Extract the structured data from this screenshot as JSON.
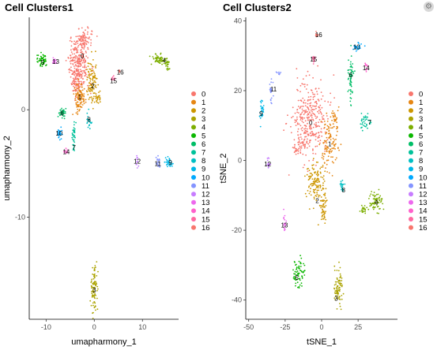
{
  "chart_data": [
    {
      "type": "scatter",
      "title": "Cell Clusters1",
      "xlabel": "umapharmony_1",
      "ylabel": "umapharmony_2",
      "xlim": [
        -13.5,
        17.5
      ],
      "ylim": [
        -19.5,
        8.6
      ],
      "xticks": [
        -10,
        0,
        10
      ],
      "yticks": [
        0,
        -10
      ],
      "grid": false,
      "legend": "right",
      "clusters": [
        {
          "name": "0",
          "color": "#F8766D",
          "label_pos": [
            -2.5,
            5.0
          ],
          "blobs": [
            [
              -3.2,
              4.3,
              2.0,
              2.4,
              260
            ],
            [
              -2.2,
              6.4,
              1.6,
              0.9,
              90
            ],
            [
              -3.6,
              2.5,
              1.0,
              1.2,
              60
            ]
          ]
        },
        {
          "name": "1",
          "color": "#E68613",
          "label_pos": [
            -3.0,
            1.2
          ],
          "blobs": [
            [
              -3.0,
              1.4,
              1.3,
              1.0,
              90
            ],
            [
              -3.5,
              0.2,
              0.8,
              0.6,
              25
            ]
          ]
        },
        {
          "name": "2",
          "color": "#CD9600",
          "label_pos": [
            -0.3,
            2.2
          ],
          "blobs": [
            [
              -0.5,
              2.6,
              1.0,
              2.2,
              100
            ],
            [
              0.8,
              1.0,
              0.7,
              0.6,
              25
            ]
          ]
        },
        {
          "name": "3",
          "color": "#ABA300",
          "label_pos": [
            0.0,
            -16.8
          ],
          "blobs": [
            [
              0.0,
              -16.6,
              0.7,
              2.0,
              90
            ]
          ]
        },
        {
          "name": "4",
          "color": "#7CAE00",
          "label_pos": [
            14.5,
            4.6
          ],
          "blobs": [
            [
              13.6,
              4.7,
              1.5,
              0.5,
              70
            ],
            [
              15.2,
              4.2,
              0.5,
              0.6,
              20
            ]
          ]
        },
        {
          "name": "5",
          "color": "#0CB702",
          "label_pos": [
            -10.7,
            4.4
          ],
          "blobs": [
            [
              -10.8,
              4.6,
              0.9,
              0.6,
              60
            ]
          ]
        },
        {
          "name": "6",
          "color": "#00BE67",
          "label_pos": [
            -6.7,
            -0.3
          ],
          "blobs": [
            [
              -6.6,
              -0.3,
              0.8,
              0.5,
              40
            ]
          ]
        },
        {
          "name": "7",
          "color": "#00C19A",
          "label_pos": [
            -4.2,
            -3.5
          ],
          "blobs": [
            [
              -4.2,
              -2.6,
              0.35,
              1.3,
              35
            ]
          ]
        },
        {
          "name": "8",
          "color": "#00BFC4",
          "label_pos": [
            -1.1,
            -0.9
          ],
          "blobs": [
            [
              -1.1,
              -1.1,
              0.5,
              0.7,
              20
            ]
          ]
        },
        {
          "name": "9",
          "color": "#00B8E7",
          "label_pos": [
            15.8,
            -4.9
          ],
          "blobs": [
            [
              15.4,
              -4.9,
              0.9,
              0.4,
              30
            ]
          ]
        },
        {
          "name": "10",
          "color": "#00A9FF",
          "label_pos": [
            -7.3,
            -2.2
          ],
          "blobs": [
            [
              -7.2,
              -2.2,
              0.5,
              0.6,
              25
            ]
          ]
        },
        {
          "name": "11",
          "color": "#8494FF",
          "label_pos": [
            13.2,
            -5.0
          ],
          "blobs": [
            [
              13.3,
              -4.8,
              0.5,
              0.7,
              20
            ]
          ]
        },
        {
          "name": "12",
          "color": "#C77CFF",
          "label_pos": [
            8.9,
            -4.8
          ],
          "blobs": [
            [
              8.9,
              -4.8,
              0.2,
              0.6,
              12
            ]
          ]
        },
        {
          "name": "13",
          "color": "#ED68ED",
          "label_pos": [
            -8.0,
            4.5
          ],
          "blobs": [
            [
              -8.2,
              4.5,
              0.6,
              0.25,
              18
            ]
          ]
        },
        {
          "name": "14",
          "color": "#FF61CC",
          "label_pos": [
            -5.8,
            -3.9
          ],
          "blobs": [
            [
              -5.8,
              -3.9,
              0.4,
              0.3,
              12
            ]
          ]
        },
        {
          "name": "15",
          "color": "#FF68A1",
          "label_pos": [
            4.0,
            2.7
          ],
          "blobs": [
            [
              3.9,
              2.9,
              0.3,
              0.3,
              10
            ]
          ]
        },
        {
          "name": "16",
          "color": "#F8766D",
          "label_pos": [
            5.4,
            3.5
          ],
          "blobs": [
            [
              5.2,
              3.6,
              0.2,
              0.2,
              6
            ]
          ]
        }
      ]
    },
    {
      "type": "scatter",
      "title": "Cell Clusters2",
      "xlabel": "tSNE_1",
      "ylabel": "tSNE_2",
      "xlim": [
        -52,
        52
      ],
      "ylim": [
        -45.5,
        41
      ],
      "xticks": [
        -50,
        -25,
        0,
        25
      ],
      "yticks": [
        40,
        20,
        0,
        -20,
        -40
      ],
      "grid": false,
      "legend": "right",
      "clusters": [
        {
          "name": "0",
          "color": "#F8766D",
          "label_pos": [
            -7.5,
            10.8
          ],
          "blobs": [
            [
              -8.0,
              12.0,
              11.0,
              11.0,
              320
            ],
            [
              -15.0,
              4.0,
              5.0,
              3.0,
              40
            ]
          ]
        },
        {
          "name": "1",
          "color": "#E68613",
          "label_pos": [
            5.5,
            4.7
          ],
          "blobs": [
            [
              5.5,
              4.5,
              6.0,
              7.0,
              110
            ],
            [
              9.0,
              12.0,
              3.0,
              3.0,
              30
            ]
          ]
        },
        {
          "name": "2",
          "color": "#CD9600",
          "label_pos": [
            -3.0,
            -11.5
          ],
          "blobs": [
            [
              -4.0,
              -6.0,
              6.5,
              6.0,
              130
            ],
            [
              1.0,
              -14.0,
              2.5,
              5.0,
              50
            ]
          ]
        },
        {
          "name": "3",
          "color": "#ABA300",
          "label_pos": [
            10.0,
            -39.5
          ],
          "blobs": [
            [
              11.5,
              -36.5,
              3.0,
              5.5,
              80
            ]
          ]
        },
        {
          "name": "4",
          "color": "#7CAE00",
          "label_pos": [
            37.5,
            -12.0
          ],
          "blobs": [
            [
              37.5,
              -11.5,
              4.5,
              3.0,
              70
            ],
            [
              28.5,
              -14.0,
              2.5,
              1.0,
              20
            ]
          ]
        },
        {
          "name": "5",
          "color": "#0CB702",
          "label_pos": [
            -17.0,
            -33.5
          ],
          "blobs": [
            [
              -15.5,
              -32.0,
              3.5,
              5.0,
              70
            ]
          ]
        },
        {
          "name": "6",
          "color": "#00BE67",
          "label_pos": [
            20.0,
            24.5
          ],
          "blobs": [
            [
              20.0,
              24.0,
              1.8,
              6.0,
              60
            ]
          ]
        },
        {
          "name": "7",
          "color": "#00C19A",
          "label_pos": [
            33.0,
            11.0
          ],
          "blobs": [
            [
              30.0,
              11.0,
              3.5,
              2.0,
              35
            ]
          ]
        },
        {
          "name": "8",
          "color": "#00BFC4",
          "label_pos": [
            15.0,
            -8.5
          ],
          "blobs": [
            [
              14.0,
              -7.5,
              1.5,
              3.0,
              22
            ]
          ]
        },
        {
          "name": "9",
          "color": "#00B8E7",
          "label_pos": [
            -41.5,
            13.5
          ],
          "blobs": [
            [
              -41.0,
              14.0,
              1.3,
              3.5,
              30
            ]
          ]
        },
        {
          "name": "10",
          "color": "#00A9FF",
          "label_pos": [
            24.0,
            32.5
          ],
          "blobs": [
            [
              24.5,
              32.5,
              3.0,
              1.5,
              30
            ]
          ]
        },
        {
          "name": "11",
          "color": "#8494FF",
          "label_pos": [
            -33.0,
            20.5
          ],
          "blobs": [
            [
              -34.5,
              20.0,
              1.5,
              3.0,
              22
            ],
            [
              -29.0,
              25.0,
              2.0,
              0.6,
              8
            ]
          ]
        },
        {
          "name": "12",
          "color": "#C77CFF",
          "label_pos": [
            -37.0,
            -1.0
          ],
          "blobs": [
            [
              -36.5,
              -0.5,
              1.0,
              1.5,
              15
            ]
          ]
        },
        {
          "name": "13",
          "color": "#ED68ED",
          "label_pos": [
            -25.5,
            -18.5
          ],
          "blobs": [
            [
              -25.5,
              -17.5,
              1.0,
              3.0,
              18
            ]
          ]
        },
        {
          "name": "14",
          "color": "#FF61CC",
          "label_pos": [
            30.5,
            26.5
          ],
          "blobs": [
            [
              30.5,
              26.5,
              1.0,
              1.5,
              14
            ]
          ]
        },
        {
          "name": "15",
          "color": "#FF68A1",
          "label_pos": [
            -5.5,
            29.0
          ],
          "blobs": [
            [
              -5.5,
              29.0,
              1.0,
              1.5,
              14
            ]
          ]
        },
        {
          "name": "16",
          "color": "#F8766D",
          "label_pos": [
            -2.0,
            36.0
          ],
          "blobs": [
            [
              -3.0,
              36.0,
              1.5,
              1.0,
              10
            ]
          ]
        }
      ]
    }
  ],
  "legend": {
    "items": [
      {
        "label": "0",
        "color": "#F8766D"
      },
      {
        "label": "1",
        "color": "#E68613"
      },
      {
        "label": "2",
        "color": "#CD9600"
      },
      {
        "label": "3",
        "color": "#ABA300"
      },
      {
        "label": "4",
        "color": "#7CAE00"
      },
      {
        "label": "5",
        "color": "#0CB702"
      },
      {
        "label": "6",
        "color": "#00BE67"
      },
      {
        "label": "7",
        "color": "#00C19A"
      },
      {
        "label": "8",
        "color": "#00BFC4"
      },
      {
        "label": "9",
        "color": "#00B8E7"
      },
      {
        "label": "10",
        "color": "#00A9FF"
      },
      {
        "label": "11",
        "color": "#8494FF"
      },
      {
        "label": "12",
        "color": "#C77CFF"
      },
      {
        "label": "13",
        "color": "#ED68ED"
      },
      {
        "label": "14",
        "color": "#FF61CC"
      },
      {
        "label": "15",
        "color": "#FF68A1"
      },
      {
        "label": "16",
        "color": "#F8766D"
      }
    ]
  },
  "corner_icon": "settings-icon"
}
